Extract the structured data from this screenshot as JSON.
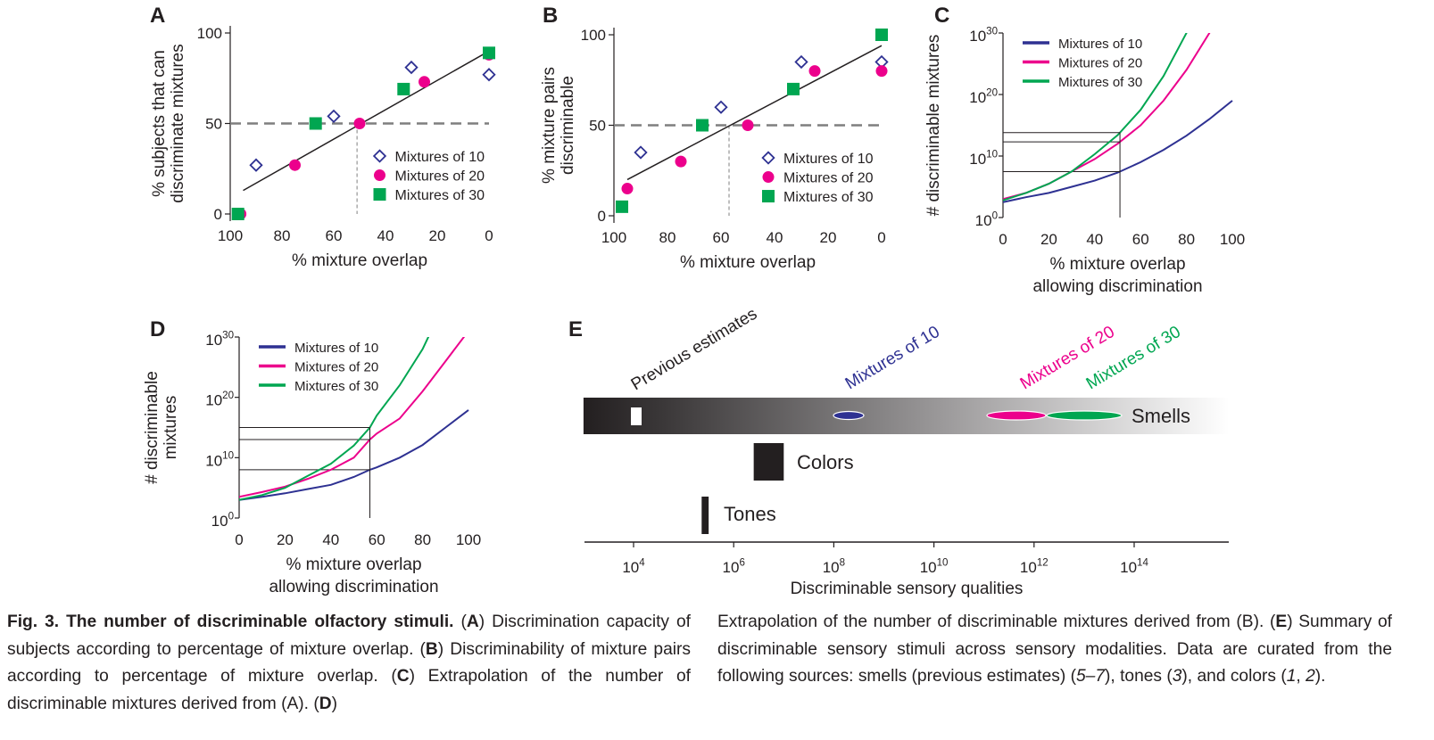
{
  "chart_data": [
    {
      "panel": "A",
      "type": "scatter",
      "xlabel": "% mixture overlap",
      "ylabel": [
        "% subjects that can",
        "discriminate mixtures"
      ],
      "xlim": [
        100,
        0
      ],
      "ylim": [
        0,
        100
      ],
      "xticks": [
        "100",
        "80",
        "60",
        "40",
        "20",
        "0"
      ],
      "yticks": [
        "0",
        "50",
        "100"
      ],
      "reference_line_y": 50,
      "crossing_x": 51,
      "fit_line": [
        [
          95,
          13
        ],
        [
          0,
          90
        ]
      ],
      "legend_placement": "lower-right",
      "series": [
        {
          "name": "Mixtures of 10",
          "marker": "open-diamond",
          "color": "#2e3192",
          "points": [
            [
              90,
              27
            ],
            [
              60,
              54
            ],
            [
              30,
              81
            ],
            [
              0,
              77
            ]
          ]
        },
        {
          "name": "Mixtures of 20",
          "marker": "circle",
          "color": "#ec008c",
          "points": [
            [
              96,
              0
            ],
            [
              75,
              27
            ],
            [
              50,
              50
            ],
            [
              25,
              73
            ],
            [
              0,
              88
            ]
          ]
        },
        {
          "name": "Mixtures of 30",
          "marker": "square",
          "color": "#00a651",
          "points": [
            [
              97,
              0
            ],
            [
              67,
              50
            ],
            [
              33,
              69
            ],
            [
              0,
              89
            ]
          ]
        }
      ]
    },
    {
      "panel": "B",
      "type": "scatter",
      "xlabel": "% mixture overlap",
      "ylabel": [
        "% mixture pairs",
        "discriminable"
      ],
      "xlim": [
        100,
        0
      ],
      "ylim": [
        0,
        100
      ],
      "xticks": [
        "100",
        "80",
        "60",
        "40",
        "20",
        "0"
      ],
      "yticks": [
        "0",
        "50",
        "100"
      ],
      "reference_line_y": 50,
      "crossing_x": 57,
      "fit_line": [
        [
          95,
          20
        ],
        [
          0,
          94
        ]
      ],
      "legend_placement": "lower-right",
      "series": [
        {
          "name": "Mixtures of 10",
          "marker": "open-diamond",
          "color": "#2e3192",
          "points": [
            [
              90,
              35
            ],
            [
              60,
              60
            ],
            [
              30,
              85
            ],
            [
              0,
              85
            ]
          ]
        },
        {
          "name": "Mixtures of 20",
          "marker": "circle",
          "color": "#ec008c",
          "points": [
            [
              95,
              15
            ],
            [
              75,
              30
            ],
            [
              50,
              50
            ],
            [
              25,
              80
            ],
            [
              0,
              80
            ]
          ]
        },
        {
          "name": "Mixtures of 30",
          "marker": "square",
          "color": "#00a651",
          "points": [
            [
              97,
              5
            ],
            [
              67,
              50
            ],
            [
              33,
              70
            ],
            [
              0,
              100
            ]
          ]
        }
      ]
    },
    {
      "panel": "C",
      "type": "line",
      "xlabel": [
        "% mixture overlap",
        "allowing discrimination"
      ],
      "ylabel": "# discriminable mixtures",
      "yscale": "log10",
      "xlim": [
        0,
        100
      ],
      "ylim_exponent": [
        0,
        30
      ],
      "xticks": [
        "0",
        "20",
        "40",
        "60",
        "80",
        "100"
      ],
      "yticks": [
        {
          "base": "10",
          "exp": "0"
        },
        {
          "base": "10",
          "exp": "10"
        },
        {
          "base": "10",
          "exp": "20"
        },
        {
          "base": "10",
          "exp": "30"
        }
      ],
      "x": [
        0,
        10,
        20,
        30,
        40,
        50,
        60,
        70,
        80,
        90,
        100
      ],
      "crossing_x": 51,
      "legend_placement": "top-left",
      "series": [
        {
          "name": "Mixtures of 10",
          "color": "#2e3192",
          "log10_values": [
            2.5,
            3.3,
            4.0,
            5.0,
            6.0,
            7.3,
            9.0,
            11.0,
            13.3,
            16.0,
            19.0
          ]
        },
        {
          "name": "Mixtures of 20",
          "color": "#ec008c",
          "log10_values": [
            3.0,
            4.0,
            5.5,
            7.5,
            9.5,
            12.0,
            15.0,
            19.0,
            24.0,
            30.0,
            37.0
          ]
        },
        {
          "name": "Mixtures of 30",
          "color": "#00a651",
          "log10_values": [
            2.8,
            4.0,
            5.5,
            7.5,
            10.3,
            13.4,
            17.5,
            23.0,
            30.0,
            38.5,
            49.0
          ]
        }
      ]
    },
    {
      "panel": "D",
      "type": "line",
      "xlabel": [
        "% mixture overlap",
        "allowing discrimination"
      ],
      "ylabel": [
        "# discriminable",
        "mixtures"
      ],
      "yscale": "log10",
      "xlim": [
        0,
        100
      ],
      "ylim_exponent": [
        0,
        30
      ],
      "xticks": [
        "0",
        "20",
        "40",
        "60",
        "80",
        "100"
      ],
      "yticks": [
        {
          "base": "10",
          "exp": "0"
        },
        {
          "base": "10",
          "exp": "10"
        },
        {
          "base": "10",
          "exp": "20"
        },
        {
          "base": "10",
          "exp": "30"
        }
      ],
      "x": [
        0,
        10,
        20,
        30,
        40,
        50,
        57,
        60,
        70,
        80,
        90,
        100
      ],
      "crossing_x": 57,
      "legend_placement": "top-left",
      "series": [
        {
          "name": "Mixtures of 10",
          "color": "#2e3192",
          "log10_values": [
            3.0,
            3.5,
            4.1,
            4.8,
            5.5,
            6.8,
            8.0,
            8.4,
            10.0,
            12.1,
            15.0,
            17.9
          ]
        },
        {
          "name": "Mixtures of 20",
          "color": "#ec008c",
          "log10_values": [
            3.5,
            4.3,
            5.2,
            6.5,
            8.0,
            10.0,
            13.0,
            14.0,
            16.5,
            21.0,
            26.0,
            31.0
          ]
        },
        {
          "name": "Mixtures of 30",
          "color": "#00a651",
          "log10_values": [
            3.0,
            3.8,
            5.0,
            7.0,
            9.0,
            12.0,
            15.0,
            17.0,
            22.0,
            28.0,
            36.0,
            44.0
          ]
        }
      ]
    },
    {
      "panel": "E",
      "type": "range",
      "xlabel": "Discriminable sensory qualities",
      "xscale": "log10",
      "xlim_exponent": [
        3.0,
        15.9
      ],
      "xticks": [
        {
          "base": "10",
          "exp": "4"
        },
        {
          "base": "10",
          "exp": "6"
        },
        {
          "base": "10",
          "exp": "8"
        },
        {
          "base": "10",
          "exp": "10"
        },
        {
          "base": "10",
          "exp": "12"
        },
        {
          "base": "10",
          "exp": "14"
        }
      ],
      "rows": [
        {
          "label": "Smells",
          "gradient": [
            "#231f20",
            "#ffffff"
          ],
          "range_log10": [
            3.0,
            15.9
          ]
        },
        {
          "label": "Colors",
          "color": "#231f20",
          "range_log10": [
            6.4,
            7.0
          ]
        },
        {
          "label": "Tones",
          "color": "#231f20",
          "range_log10": [
            5.36,
            5.5
          ]
        }
      ],
      "annotations": [
        {
          "text": "Previous estimates",
          "color": "#231f20",
          "log10": 3.9,
          "mark": "white-bar"
        },
        {
          "text": "Mixtures of 10",
          "color": "#2e3192",
          "log10": 8.3
        },
        {
          "text": "Mixtures of 20",
          "color": "#ec008c",
          "log10": 12.4
        },
        {
          "text": "Mixtures of 30",
          "color": "#00a651",
          "log10": 13.7
        }
      ]
    }
  ],
  "panel_letters": [
    "A",
    "B",
    "C",
    "D",
    "E"
  ],
  "caption": {
    "fig_label": "Fig. 3.",
    "title": "The number of discriminable olfactory stimuli.",
    "left_html": "<span class=\"cap-title\">Fig. 3. The number of discriminable olfactory stimuli.</span> (<span class=\"cap-letter\">A</span>) Discrimination capacity of subjects according to percentage of mixture overlap. (<span class=\"cap-letter\">B</span>) Discriminability of mixture pairs according to percentage of mixture overlap. (<span class=\"cap-letter\">C</span>) Extrapolation of the number of discriminable mixtures derived from (A). (<span class=\"cap-letter\">D</span>)",
    "right_html": "Extrapolation of the number of discriminable mixtures derived from (B). (<span class=\"cap-letter\">E</span>) Summary of discriminable sensory stimuli across sensory modalities. Data are curated from the following sources: smells (previous estimates) (<span class=\"ref\">5–7</span>), tones (<span class=\"ref\">3</span>), and colors (<span class=\"ref\">1</span>, <span class=\"ref\">2</span>)."
  }
}
